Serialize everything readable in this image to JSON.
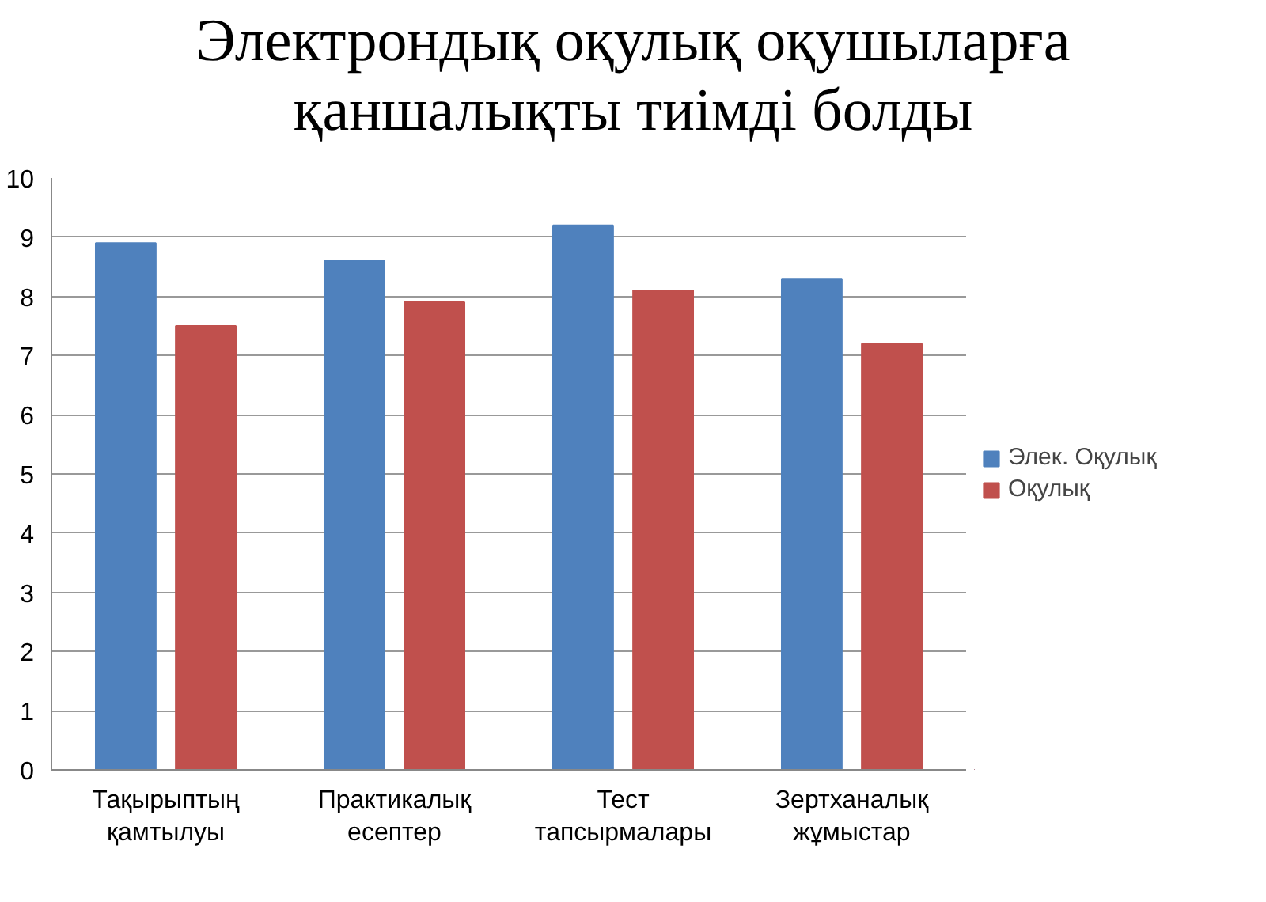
{
  "chart_data": {
    "type": "bar",
    "title": "Электрондық оқулық оқушыларға\nқаншалықты тиімді болды",
    "categories": [
      "Тақырыптың\nқамтылуы",
      "Практикалық\nесептер",
      "Тест\nтапсырмалары",
      "Зертханалық\nжұмыстар"
    ],
    "series": [
      {
        "name": "Элек. Оқулық",
        "color": "#4f81bd",
        "values": [
          8.9,
          8.6,
          9.2,
          8.3
        ]
      },
      {
        "name": "Оқулық",
        "color": "#c0504d",
        "values": [
          7.5,
          7.9,
          8.1,
          7.2
        ]
      }
    ],
    "ylim": [
      0,
      10
    ],
    "yticks": [
      0,
      1,
      2,
      3,
      4,
      5,
      6,
      7,
      8,
      9,
      10
    ],
    "grid": "y",
    "legend": "right"
  }
}
